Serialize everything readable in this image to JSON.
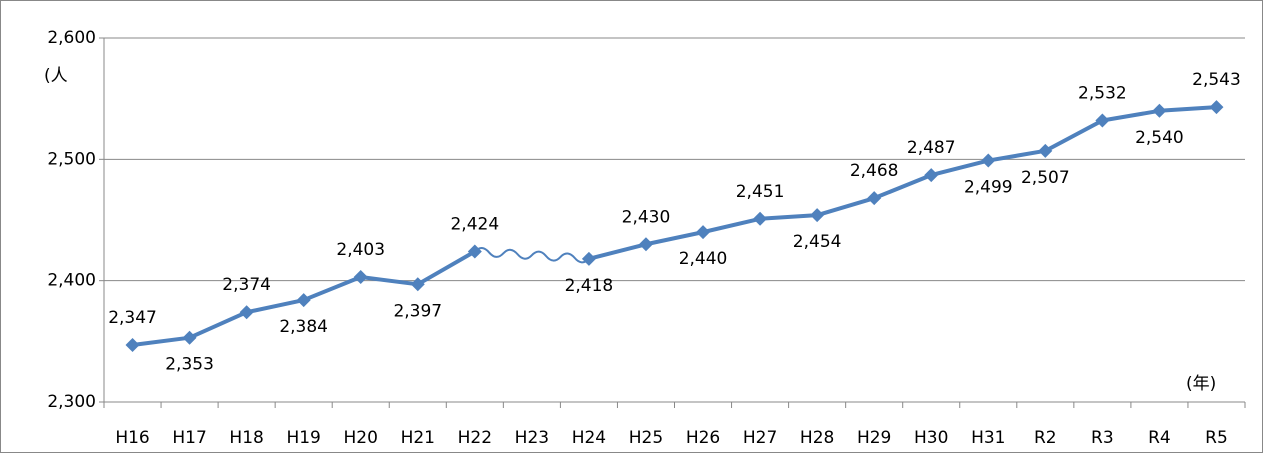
{
  "chart_data": {
    "type": "line",
    "y_label": "(人",
    "x_label": "(年)",
    "categories": [
      "H16",
      "H17",
      "H18",
      "H19",
      "H20",
      "H21",
      "H22",
      "H23",
      "H24",
      "H25",
      "H26",
      "H27",
      "H28",
      "H29",
      "H30",
      "H31",
      "R2",
      "R3",
      "R4",
      "R5"
    ],
    "series": [
      {
        "color": "#4f81bd",
        "values": [
          2347,
          2353,
          2374,
          2384,
          2403,
          2397,
          2424,
          null,
          2418,
          2430,
          2440,
          2451,
          2454,
          2468,
          2487,
          2499,
          2507,
          2532,
          2540,
          2543
        ],
        "value_labels": [
          "2,347",
          "2,353",
          "2,374",
          "2,384",
          "2,403",
          "2,397",
          "2,424",
          null,
          "2,418",
          "2,430",
          "2,440",
          "2,451",
          "2,454",
          "2,468",
          "2,487",
          "2,499",
          "2,507",
          "2,532",
          "2,540",
          "2,543"
        ]
      }
    ],
    "ylim": [
      2300,
      2600
    ],
    "yticks": [
      {
        "value": 2300,
        "label": "2,300"
      },
      {
        "value": 2400,
        "label": "2,400"
      },
      {
        "value": 2500,
        "label": "2,500"
      },
      {
        "value": 2600,
        "label": "2,600"
      }
    ],
    "grid": true
  }
}
